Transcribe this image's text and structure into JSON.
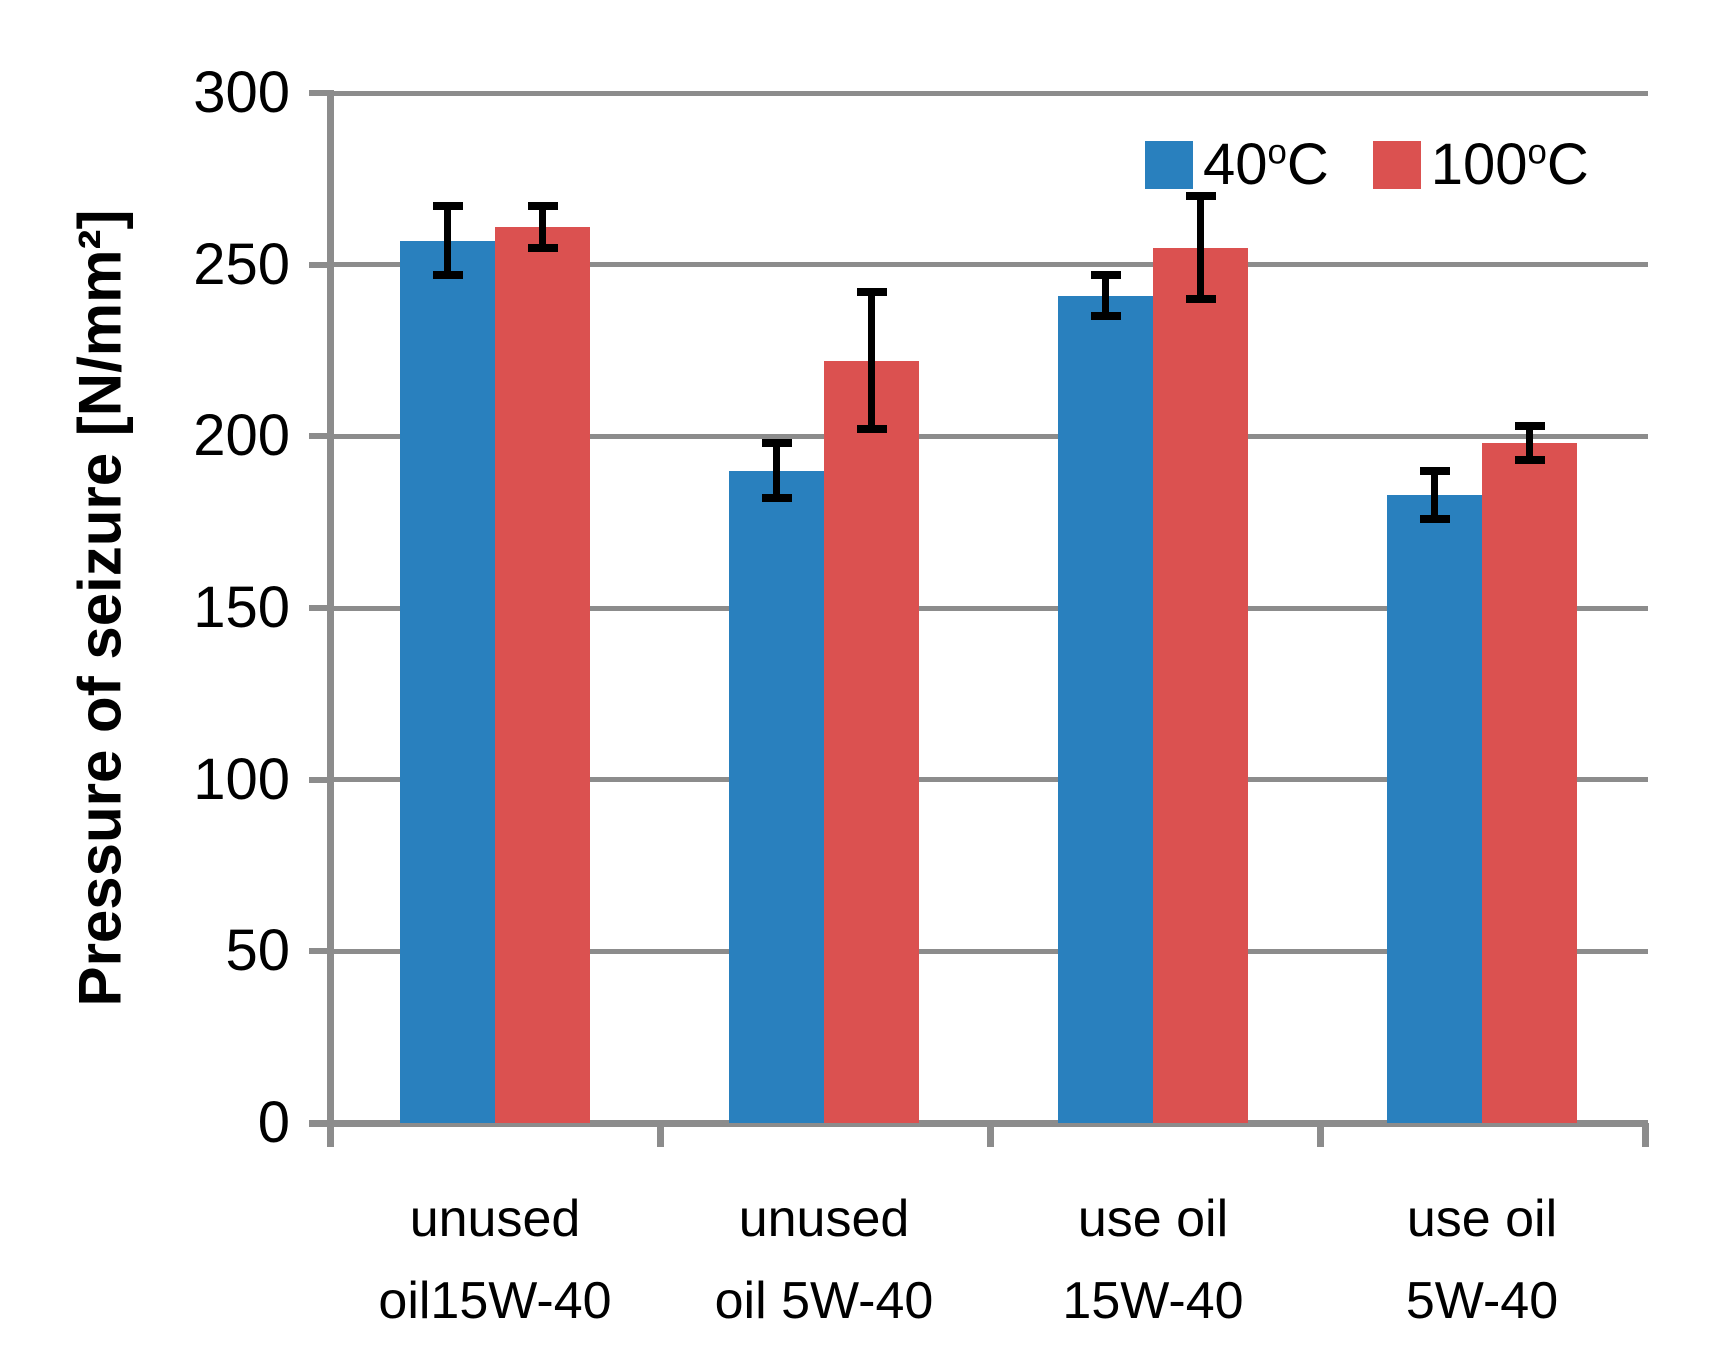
{
  "chart_data": {
    "type": "bar",
    "title": "",
    "xlabel": "",
    "ylabel": "Pressure of seizure [N/mm²]",
    "ylim": [
      0,
      300
    ],
    "ytick_interval": 50,
    "yticks": [
      0,
      50,
      100,
      150,
      200,
      250,
      300
    ],
    "grid": "horizontal gridlines on",
    "legend_position": "top-right inside plot",
    "categories": [
      "unused oil15W-40",
      "unused oil 5W-40",
      "use oil 15W-40",
      "use oil 5W-40"
    ],
    "category_label_lines": [
      {
        "line1": "unused",
        "line2": "oil15W-40"
      },
      {
        "line1": "unused",
        "line2": "oil 5W-40"
      },
      {
        "line1": "use oil",
        "line2": "15W-40"
      },
      {
        "line1": "use oil",
        "line2": "5W-40"
      }
    ],
    "series": [
      {
        "name": "40ᵒC",
        "label_base": "40",
        "label_sup": "o",
        "label_unit": "C",
        "color": "#2980BE",
        "values": [
          257,
          190,
          241,
          183
        ],
        "errors": [
          10,
          8,
          6,
          7
        ]
      },
      {
        "name": "100ᵒC",
        "label_base": "100",
        "label_sup": "o",
        "label_unit": "C",
        "color": "#DB5150",
        "values": [
          261,
          222,
          255,
          198
        ],
        "errors": [
          6,
          20,
          15,
          5
        ]
      }
    ],
    "error_bars": "symmetric, black, with caps",
    "colors": {
      "gridline": "#8C8C8C",
      "axis": "#8C8C8C",
      "error_bar": "#000000",
      "text": "#000000",
      "background": "#FFFFFF"
    }
  }
}
